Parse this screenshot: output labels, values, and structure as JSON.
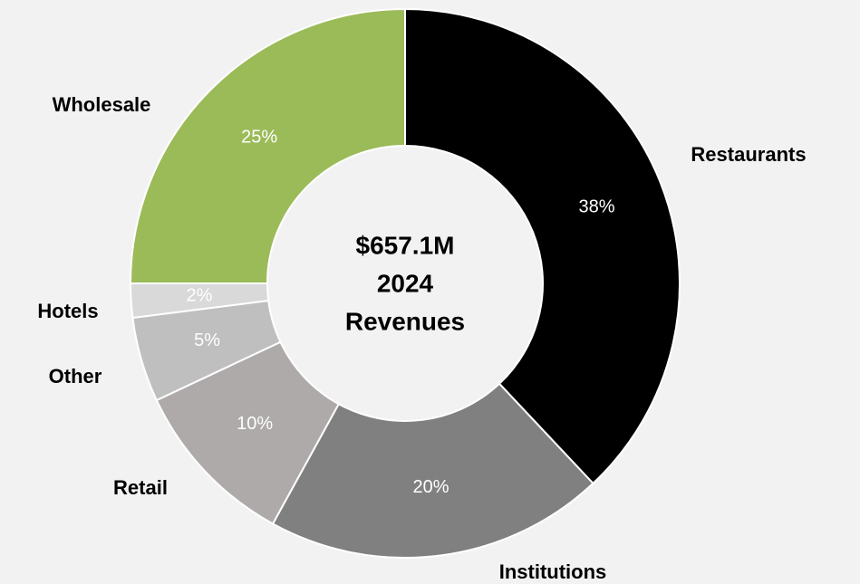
{
  "chart_data": {
    "type": "donut",
    "categories": [
      "Restaurants",
      "Institutions",
      "Retail",
      "Other",
      "Hotels",
      "Wholesale"
    ],
    "values": [
      38,
      20,
      10,
      5,
      2,
      25
    ],
    "value_labels": [
      "38%",
      "20%",
      "10%",
      "5%",
      "2%",
      "25%"
    ],
    "colors": [
      "#000000",
      "#808080",
      "#aeaaaa",
      "#bfbfbf",
      "#d9d9d9",
      "#9bbb59"
    ],
    "center_text": [
      "$657.1M",
      "2024",
      "Revenues"
    ]
  }
}
